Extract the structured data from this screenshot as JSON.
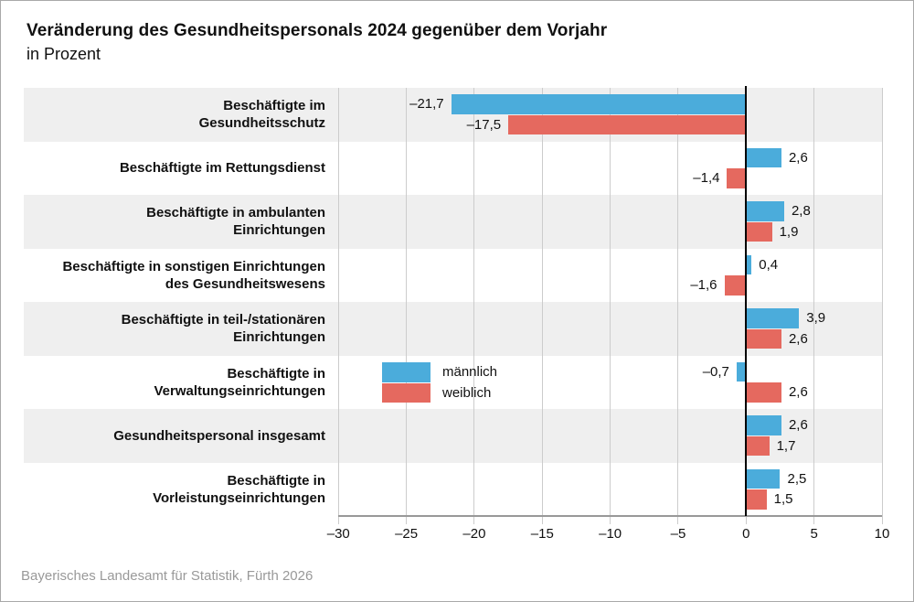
{
  "title": "Veränderung des Gesundheitspersonals 2024 gegenüber dem Vorjahr",
  "subtitle": "in Prozent",
  "footer": "Bayerisches Landesamt für Statistik, Fürth 2026",
  "legend": {
    "male_label": "männlich",
    "female_label": "weiblich"
  },
  "colors": {
    "male": "#4BACDB",
    "female": "#E5695F",
    "band": "#EFEFEF",
    "grid": "#CCCCCC",
    "axis": "#999999",
    "zero_line": "#000000",
    "footer_text": "#999999"
  },
  "chart_data": {
    "type": "bar",
    "orientation": "horizontal",
    "title": "Veränderung des Gesundheitspersonals 2024 gegenüber dem Vorjahr",
    "subtitle": "in Prozent",
    "xlabel": "",
    "ylabel": "",
    "xlim": [
      -30,
      10
    ],
    "grid": true,
    "legend_position": "inside-plot-row-6",
    "categories": [
      [
        "Beschäftigte im",
        "Gesundheitsschutz"
      ],
      [
        "Beschäftigte im Rettungsdienst"
      ],
      [
        "Beschäftigte in ambulanten",
        "Einrichtungen"
      ],
      [
        "Beschäftigte in sonstigen Einrichtungen",
        "des Gesundheitswesens"
      ],
      [
        "Beschäftigte in teil-/stationären",
        "Einrichtungen"
      ],
      [
        "Beschäftigte in",
        "Verwaltungseinrichtungen"
      ],
      [
        "Gesundheitspersonal insgesamt"
      ],
      [
        "Beschäftigte in",
        "Vorleistungseinrichtungen"
      ]
    ],
    "series": [
      {
        "name": "männlich",
        "values": [
          -21.7,
          2.6,
          2.8,
          0.4,
          3.9,
          -0.7,
          2.6,
          2.5
        ],
        "labels": [
          "–21,7",
          "2,6",
          "2,8",
          "0,4",
          "3,9",
          "–0,7",
          "2,6",
          "2,5"
        ]
      },
      {
        "name": "weiblich",
        "values": [
          -17.5,
          -1.4,
          1.9,
          -1.6,
          2.6,
          2.6,
          1.7,
          1.5
        ],
        "labels": [
          "–17,5",
          "–1,4",
          "1,9",
          "–1,6",
          "2,6",
          "2,6",
          "1,7",
          "1,5"
        ]
      }
    ],
    "x_ticks": [
      {
        "value": -30,
        "label": "–30"
      },
      {
        "value": -25,
        "label": "–25"
      },
      {
        "value": -20,
        "label": "–20"
      },
      {
        "value": -15,
        "label": "–15"
      },
      {
        "value": -10,
        "label": "–10"
      },
      {
        "value": -5,
        "label": "–5"
      },
      {
        "value": 0,
        "label": "0"
      },
      {
        "value": 5,
        "label": "5"
      },
      {
        "value": 10,
        "label": "10"
      }
    ]
  }
}
